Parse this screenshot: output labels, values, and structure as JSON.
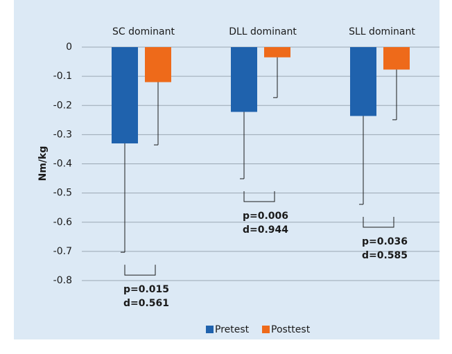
{
  "chart_data": {
    "type": "bar",
    "categories": [
      "SC dominant",
      "DLL dominant",
      "SLL dominant"
    ],
    "series": [
      {
        "name": "Pretest",
        "color": "#1f62ad",
        "values": [
          -0.33,
          -0.222,
          -0.236
        ],
        "errors": [
          0.373,
          0.229,
          0.303
        ]
      },
      {
        "name": "Posttest",
        "color": "#ee6a1a",
        "values": [
          -0.12,
          -0.035,
          -0.077
        ],
        "errors": [
          0.215,
          0.138,
          0.172
        ]
      }
    ],
    "ylabel": "Nm/kg",
    "ylim": [
      -0.8,
      0
    ],
    "yticks": [
      0,
      -0.1,
      -0.2,
      -0.3,
      -0.4,
      -0.5,
      -0.6,
      -0.7,
      -0.8
    ],
    "grid": true,
    "legend": "bottom",
    "annotations": [
      {
        "category": 0,
        "lines": [
          "p=0.015",
          "d=0.561"
        ]
      },
      {
        "category": 1,
        "lines": [
          "p=0.006",
          "d=0.944"
        ]
      },
      {
        "category": 2,
        "lines": [
          "p=0.036",
          "d=0.585"
        ]
      }
    ]
  }
}
